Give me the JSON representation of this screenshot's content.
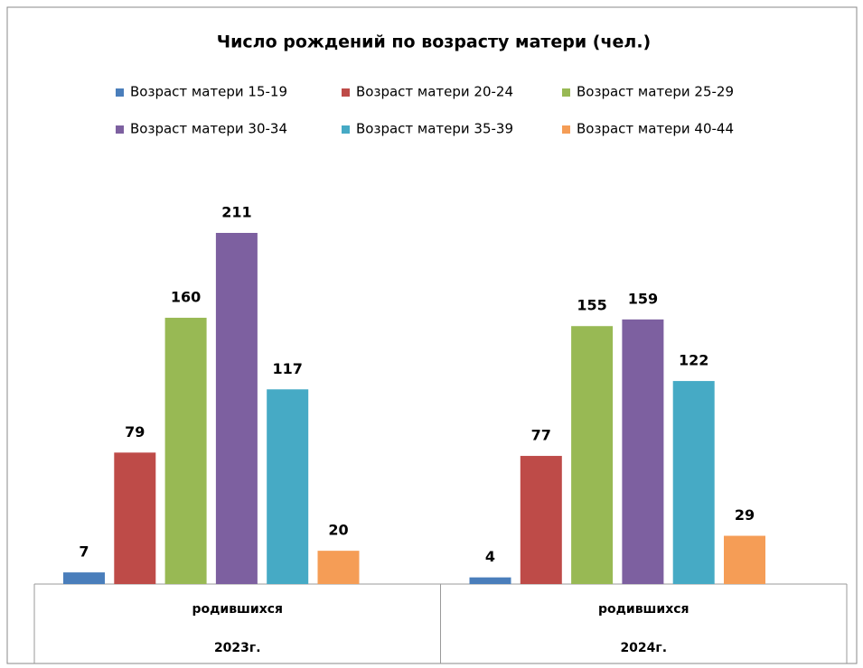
{
  "chart_data": {
    "type": "bar",
    "title": "Число рождений по возрасту матери (чел.)",
    "categories": [
      [
        "родившихся",
        "2023г."
      ],
      [
        "родившихся",
        "2024г."
      ]
    ],
    "series": [
      {
        "name": "Возраст матери 15-19",
        "color": "#4a7ebb",
        "values": [
          7,
          4
        ]
      },
      {
        "name": "Возраст матери 20-24",
        "color": "#be4b48",
        "values": [
          79,
          77
        ]
      },
      {
        "name": "Возраст матери 25-29",
        "color": "#98b954",
        "values": [
          160,
          155
        ]
      },
      {
        "name": "Возраст матери 30-34",
        "color": "#7d60a0",
        "values": [
          211,
          159
        ]
      },
      {
        "name": "Возраст матери 35-39",
        "color": "#46aac5",
        "values": [
          117,
          122
        ]
      },
      {
        "name": "Возраст матери 40-44",
        "color": "#f59d56",
        "values": [
          20,
          29
        ]
      }
    ],
    "legend": "top"
  }
}
